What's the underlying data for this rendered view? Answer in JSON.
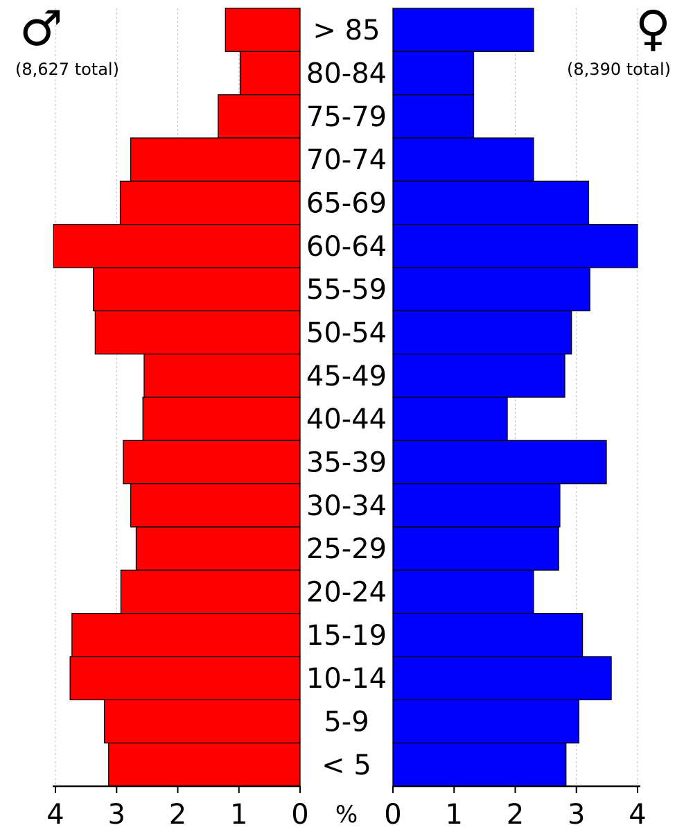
{
  "chart_data": {
    "type": "bar",
    "orientation": "horizontal-population-pyramid",
    "categories": [
      "> 85",
      "80-84",
      "75-79",
      "70-74",
      "65-69",
      "60-64",
      "55-59",
      "50-54",
      "45-49",
      "40-44",
      "35-39",
      "30-34",
      "25-29",
      "20-24",
      "15-19",
      "10-14",
      "5-9",
      "< 5"
    ],
    "series": [
      {
        "symbol": "♂",
        "total_label": "(8,627 total)",
        "color": "#ff0000",
        "values": [
          1.22,
          0.98,
          1.34,
          2.77,
          2.94,
          4.03,
          3.38,
          3.35,
          2.55,
          2.57,
          2.89,
          2.77,
          2.68,
          2.93,
          3.73,
          3.76,
          3.2,
          3.13
        ]
      },
      {
        "symbol": "♀",
        "total_label": "(8,390 total)",
        "color": "#0000ff",
        "values": [
          2.3,
          1.32,
          1.32,
          2.3,
          3.2,
          4.0,
          3.22,
          2.92,
          2.81,
          1.87,
          3.49,
          2.73,
          2.71,
          2.3,
          3.1,
          3.57,
          3.04,
          2.83
        ]
      }
    ],
    "xlim": [
      0,
      4
    ],
    "xticks": [
      "0",
      "1",
      "2",
      "3",
      "4"
    ],
    "xlabel": "%",
    "grid": true,
    "edge_color": "#000000"
  }
}
